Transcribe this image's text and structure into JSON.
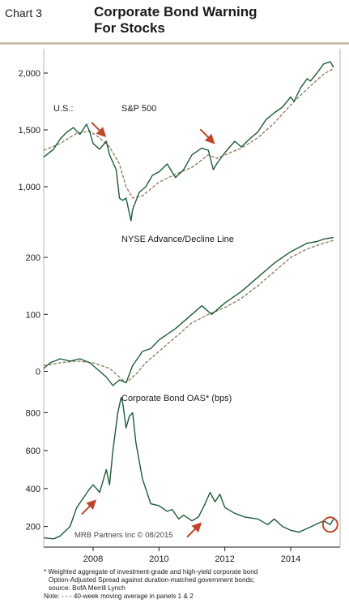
{
  "header": {
    "chart_number": "Chart 3",
    "title_line1": "Corporate Bond Warning",
    "title_line2": "For Stocks"
  },
  "footnotes": {
    "line1": "* Weighted aggregate of investment-grade and high-yield corporate bond",
    "line2": "Option-Adjusted Spread against duration-matched government bonds;",
    "line3": "source: BofA Merrill Lynch",
    "line4": "Note: - - - 40-week moving average in panels 1 & 2"
  },
  "colors": {
    "series": "#1e5b3a",
    "moving_average": "#8b7a55",
    "arrow": "#c0462a",
    "circle": "#c0462a",
    "rule": "#c8c1aa"
  },
  "chart_data": [
    {
      "type": "line",
      "panel_label": "U.S.:",
      "title": "S&P 500",
      "ylim": [
        700,
        2200
      ],
      "yticks": [
        1000,
        1500,
        2000
      ],
      "ytick_labels": [
        "1,000",
        "1,500",
        "2,000"
      ],
      "xlim": [
        2006.5,
        2015.5
      ],
      "series": [
        {
          "role": "index",
          "x": [
            2006.5,
            2006.8,
            2007.0,
            2007.2,
            2007.4,
            2007.6,
            2007.8,
            2007.9,
            2008.0,
            2008.2,
            2008.4,
            2008.5,
            2008.7,
            2008.8,
            2008.9,
            2009.0,
            2009.15,
            2009.2,
            2009.4,
            2009.6,
            2009.8,
            2010.0,
            2010.25,
            2010.5,
            2010.75,
            2011.0,
            2011.3,
            2011.5,
            2011.65,
            2011.75,
            2012.0,
            2012.3,
            2012.5,
            2012.75,
            2013.0,
            2013.25,
            2013.5,
            2013.75,
            2014.0,
            2014.1,
            2014.3,
            2014.5,
            2014.6,
            2014.8,
            2015.0,
            2015.2,
            2015.3
          ],
          "values": [
            1260,
            1330,
            1420,
            1480,
            1520,
            1460,
            1550,
            1480,
            1380,
            1330,
            1400,
            1280,
            1150,
            900,
            880,
            900,
            700,
            800,
            950,
            1000,
            1100,
            1130,
            1200,
            1080,
            1150,
            1280,
            1340,
            1320,
            1150,
            1200,
            1300,
            1400,
            1350,
            1420,
            1480,
            1590,
            1650,
            1700,
            1790,
            1750,
            1870,
            1950,
            1930,
            2000,
            2080,
            2100,
            2050
          ]
        },
        {
          "role": "40-week moving average",
          "x": [
            2006.5,
            2007.0,
            2007.5,
            2007.9,
            2008.2,
            2008.5,
            2008.8,
            2009.0,
            2009.2,
            2009.5,
            2010.0,
            2010.5,
            2011.0,
            2011.5,
            2011.75,
            2012.0,
            2012.5,
            2013.0,
            2013.5,
            2014.0,
            2014.5,
            2015.0,
            2015.3
          ],
          "values": [
            1320,
            1380,
            1470,
            1490,
            1430,
            1350,
            1200,
            1000,
            900,
            920,
            1040,
            1110,
            1170,
            1280,
            1250,
            1280,
            1340,
            1430,
            1560,
            1720,
            1860,
            1990,
            2040
          ]
        }
      ],
      "annotations": [
        {
          "type": "arrow",
          "direction": "down",
          "near_x": 2008.1
        },
        {
          "type": "arrow",
          "direction": "down",
          "near_x": 2011.4
        }
      ]
    },
    {
      "type": "line",
      "title": "NYSE Advance/Decline Line",
      "ylim": [
        -35,
        260
      ],
      "yticks": [
        0,
        100,
        200
      ],
      "ytick_labels": [
        "0",
        "100",
        "200"
      ],
      "xlim": [
        2006.5,
        2015.5
      ],
      "series": [
        {
          "role": "index",
          "x": [
            2006.5,
            2006.7,
            2007.0,
            2007.3,
            2007.6,
            2007.9,
            2008.2,
            2008.4,
            2008.6,
            2008.8,
            2009.0,
            2009.2,
            2009.5,
            2009.75,
            2010.0,
            2010.5,
            2011.0,
            2011.3,
            2011.6,
            2011.8,
            2012.0,
            2012.5,
            2013.0,
            2013.5,
            2014.0,
            2014.5,
            2014.8,
            2015.0,
            2015.3
          ],
          "values": [
            5,
            15,
            22,
            18,
            22,
            15,
            0,
            -10,
            -25,
            -15,
            -20,
            10,
            35,
            40,
            55,
            75,
            100,
            115,
            100,
            110,
            120,
            140,
            165,
            190,
            210,
            225,
            228,
            232,
            235
          ]
        },
        {
          "role": "40-week moving average",
          "x": [
            2006.5,
            2007.0,
            2007.5,
            2008.0,
            2008.5,
            2008.8,
            2009.0,
            2009.3,
            2009.6,
            2010.0,
            2010.5,
            2011.0,
            2011.5,
            2012.0,
            2012.5,
            2013.0,
            2013.5,
            2014.0,
            2014.5,
            2015.0,
            2015.3
          ],
          "values": [
            10,
            15,
            18,
            15,
            5,
            -10,
            -20,
            -5,
            15,
            35,
            60,
            85,
            100,
            112,
            128,
            150,
            175,
            200,
            215,
            225,
            230
          ]
        }
      ]
    },
    {
      "type": "line",
      "title": "Corporate Bond OAS* (bps)",
      "ylim": [
        100,
        900
      ],
      "yticks": [
        200,
        400,
        600,
        800
      ],
      "ytick_labels": [
        "200",
        "400",
        "600",
        "800"
      ],
      "xlim": [
        2006.5,
        2015.5
      ],
      "xticks": [
        2008,
        2010,
        2012,
        2014
      ],
      "xtick_labels": [
        "2008",
        "2010",
        "2012",
        "2014"
      ],
      "series": [
        {
          "role": "index",
          "x": [
            2006.5,
            2006.8,
            2007.0,
            2007.3,
            2007.5,
            2007.7,
            2007.9,
            2008.0,
            2008.2,
            2008.4,
            2008.5,
            2008.6,
            2008.75,
            2008.85,
            2008.9,
            2009.0,
            2009.1,
            2009.2,
            2009.3,
            2009.5,
            2009.75,
            2010.0,
            2010.25,
            2010.4,
            2010.6,
            2010.75,
            2011.0,
            2011.2,
            2011.4,
            2011.55,
            2011.7,
            2011.85,
            2012.0,
            2012.3,
            2012.6,
            2013.0,
            2013.3,
            2013.5,
            2013.75,
            2014.0,
            2014.25,
            2014.5,
            2014.75,
            2015.0,
            2015.2,
            2015.3
          ],
          "values": [
            140,
            135,
            150,
            200,
            300,
            350,
            400,
            420,
            380,
            500,
            420,
            600,
            800,
            880,
            850,
            720,
            780,
            800,
            640,
            450,
            320,
            310,
            280,
            290,
            240,
            260,
            230,
            250,
            320,
            380,
            330,
            370,
            300,
            270,
            250,
            240,
            210,
            240,
            200,
            180,
            170,
            190,
            210,
            230,
            210,
            240
          ]
        }
      ],
      "annotations": [
        {
          "type": "arrow",
          "direction": "up",
          "near_x": 2007.8
        },
        {
          "type": "arrow",
          "direction": "up",
          "near_x": 2011.0
        },
        {
          "type": "circle",
          "near_x": 2015.2
        }
      ],
      "credit": "MRB Partners Inc © 08/2015"
    }
  ]
}
